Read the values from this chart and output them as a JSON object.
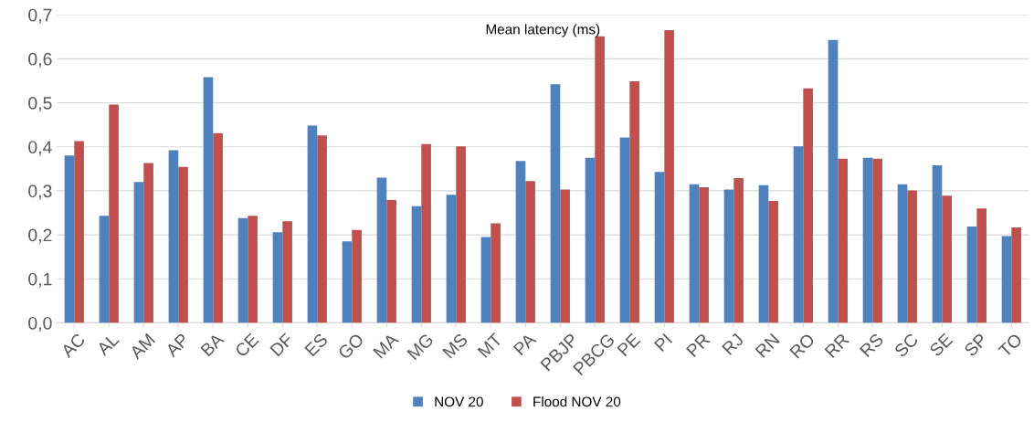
{
  "chart_data": {
    "type": "bar",
    "title": "Mean latency (ms)",
    "categories": [
      "AC",
      "AL",
      "AM",
      "AP",
      "BA",
      "CE",
      "DF",
      "ES",
      "GO",
      "MA",
      "MG",
      "MS",
      "MT",
      "PA",
      "PBJP",
      "PBCG",
      "PE",
      "PI",
      "PR",
      "RJ",
      "RN",
      "RO",
      "RR",
      "RS",
      "SC",
      "SE",
      "SP",
      "TO"
    ],
    "series": [
      {
        "name": "NOV 20",
        "color": "#4f81bd",
        "values": [
          0.38,
          0.243,
          0.32,
          0.392,
          0.558,
          0.238,
          0.206,
          0.448,
          0.185,
          0.33,
          0.265,
          0.291,
          0.195,
          0.368,
          0.542,
          0.375,
          0.421,
          0.343,
          0.315,
          0.303,
          0.313,
          0.401,
          0.643,
          0.375,
          0.315,
          0.358,
          0.219,
          0.197
        ]
      },
      {
        "name": "Flood NOV 20",
        "color": "#c0504d",
        "values": [
          0.413,
          0.496,
          0.363,
          0.354,
          0.431,
          0.243,
          0.231,
          0.426,
          0.211,
          0.279,
          0.406,
          0.401,
          0.226,
          0.322,
          0.303,
          0.651,
          0.549,
          0.665,
          0.308,
          0.329,
          0.277,
          0.533,
          0.373,
          0.373,
          0.301,
          0.289,
          0.26,
          0.217
        ]
      }
    ],
    "ylim": [
      0,
      0.7
    ],
    "yticks": [
      {
        "value": 0,
        "label": "0,0"
      },
      {
        "value": 0.1,
        "label": "0,1"
      },
      {
        "value": 0.2,
        "label": "0,2"
      },
      {
        "value": 0.3,
        "label": "0,3"
      },
      {
        "value": 0.4,
        "label": "0,4"
      },
      {
        "value": 0.5,
        "label": "0,5"
      },
      {
        "value": 0.6,
        "label": "0,6"
      },
      {
        "value": 0.7,
        "label": "0,7"
      }
    ],
    "grid": "y",
    "legend": "bottom"
  }
}
